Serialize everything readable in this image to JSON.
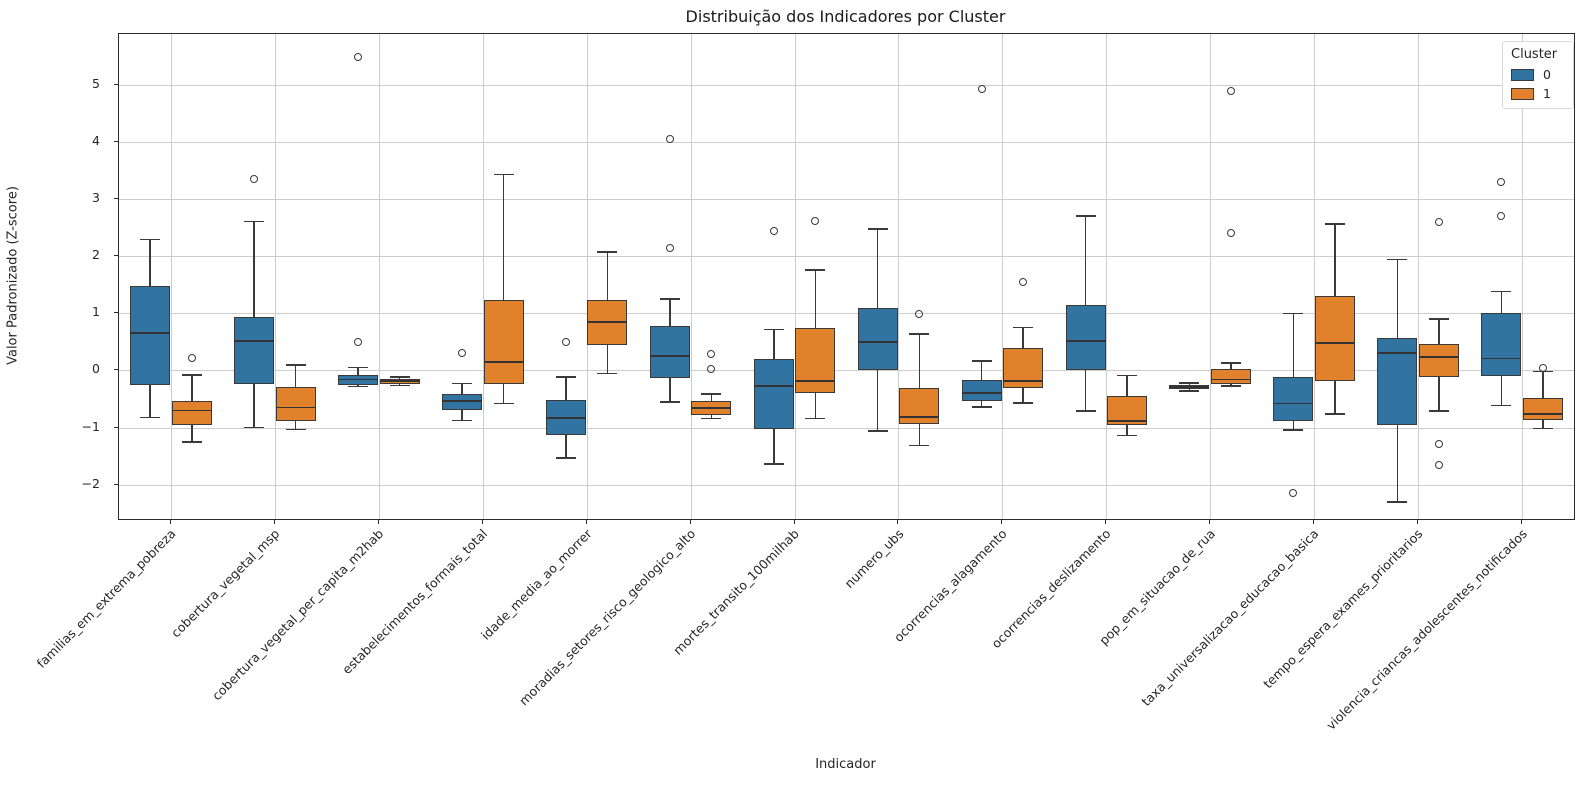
{
  "chart_data": {
    "type": "boxplot",
    "title": "Distribuição dos Indicadores por Cluster",
    "xlabel": "Indicador",
    "ylabel": "Valor Padronizado (Z-score)",
    "ylim": [
      -2.6,
      5.89
    ],
    "yticks": [
      -2,
      -1,
      0,
      1,
      2,
      3,
      4,
      5
    ],
    "grid": true,
    "legend": {
      "title": "Cluster",
      "position": "upper right",
      "entries": [
        {
          "label": "0",
          "color": "#3274A1"
        },
        {
          "label": "1",
          "color": "#E1812C"
        }
      ]
    },
    "categories": [
      "familias_em_extrema_pobreza",
      "cobertura_vegetal_msp",
      "cobertura_vegetal_per_capita_m2hab",
      "estabelecimentos_formais_total",
      "idade_media_ao_morrer",
      "moradias_setores_risco_geologico_alto",
      "mortes_transito_100milhab",
      "numero_ubs",
      "ocorrencias_alagamento",
      "ocorrencias_deslizamento",
      "pop_em_situacao_de_rua",
      "taxa_universalizacao_educacao_basica",
      "tempo_espera_exames_prioritarios",
      "violencia_criancas_adolescentes_notificados"
    ],
    "series": [
      {
        "name": "0",
        "color": "#3274A1",
        "boxes": [
          {
            "whislo": -0.82,
            "q1": -0.25,
            "med": 0.65,
            "q3": 1.48,
            "whishi": 2.29,
            "outliers": []
          },
          {
            "whislo": -1.0,
            "q1": -0.24,
            "med": 0.51,
            "q3": 0.94,
            "whishi": 2.61,
            "outliers": [
              3.36
            ]
          },
          {
            "whislo": -0.28,
            "q1": -0.25,
            "med": -0.16,
            "q3": -0.08,
            "whishi": 0.05,
            "outliers": [
              5.49,
              0.49
            ]
          },
          {
            "whislo": -0.88,
            "q1": -0.7,
            "med": -0.53,
            "q3": -0.41,
            "whishi": -0.23,
            "outliers": [
              0.31
            ]
          },
          {
            "whislo": -1.53,
            "q1": -1.13,
            "med": -0.83,
            "q3": -0.51,
            "whishi": -0.11,
            "outliers": [
              0.5
            ]
          },
          {
            "whislo": -0.55,
            "q1": -0.13,
            "med": 0.25,
            "q3": 0.77,
            "whishi": 1.25,
            "outliers": [
              4.05,
              2.14
            ]
          },
          {
            "whislo": -1.64,
            "q1": -1.03,
            "med": -0.27,
            "q3": 0.2,
            "whishi": 0.72,
            "outliers": [
              2.44
            ]
          },
          {
            "whislo": -1.06,
            "q1": 0.0,
            "med": 0.5,
            "q3": 1.1,
            "whishi": 2.48,
            "outliers": []
          },
          {
            "whislo": -0.64,
            "q1": -0.53,
            "med": -0.4,
            "q3": -0.16,
            "whishi": 0.17,
            "outliers": [
              4.93
            ]
          },
          {
            "whislo": -0.71,
            "q1": 0.0,
            "med": 0.51,
            "q3": 1.15,
            "whishi": 2.7,
            "outliers": []
          },
          {
            "whislo": -0.36,
            "q1": -0.33,
            "med": -0.29,
            "q3": -0.25,
            "whishi": -0.22,
            "outliers": []
          },
          {
            "whislo": -1.04,
            "q1": -0.89,
            "med": -0.58,
            "q3": -0.12,
            "whishi": 1.0,
            "outliers": [
              -2.15
            ]
          },
          {
            "whislo": -2.3,
            "q1": -0.95,
            "med": 0.31,
            "q3": 0.57,
            "whishi": 1.94,
            "outliers": []
          },
          {
            "whislo": -0.61,
            "q1": -0.1,
            "med": 0.21,
            "q3": 1.01,
            "whishi": 1.38,
            "outliers": [
              3.3,
              2.7
            ]
          }
        ]
      },
      {
        "name": "1",
        "color": "#E1812C",
        "boxes": [
          {
            "whislo": -1.25,
            "q1": -0.96,
            "med": -0.7,
            "q3": -0.54,
            "whishi": -0.08,
            "outliers": [
              0.21
            ]
          },
          {
            "whislo": -1.03,
            "q1": -0.88,
            "med": -0.65,
            "q3": -0.29,
            "whishi": 0.1,
            "outliers": []
          },
          {
            "whislo": -0.26,
            "q1": -0.23,
            "med": -0.19,
            "q3": -0.15,
            "whishi": -0.11,
            "outliers": []
          },
          {
            "whislo": -0.58,
            "q1": -0.23,
            "med": 0.15,
            "q3": 1.24,
            "whishi": 3.43,
            "outliers": []
          },
          {
            "whislo": -0.05,
            "q1": 0.44,
            "med": 0.85,
            "q3": 1.23,
            "whishi": 2.07,
            "outliers": []
          },
          {
            "whislo": -0.84,
            "q1": -0.78,
            "med": -0.66,
            "q3": -0.54,
            "whishi": -0.41,
            "outliers": [
              0.29,
              0.02
            ]
          },
          {
            "whislo": -0.84,
            "q1": -0.39,
            "med": -0.18,
            "q3": 0.74,
            "whishi": 1.76,
            "outliers": [
              2.62
            ]
          },
          {
            "whislo": -1.31,
            "q1": -0.93,
            "med": -0.82,
            "q3": -0.3,
            "whishi": 0.64,
            "outliers": [
              0.98
            ]
          },
          {
            "whislo": -0.57,
            "q1": -0.3,
            "med": -0.18,
            "q3": 0.39,
            "whishi": 0.75,
            "outliers": [
              1.55
            ]
          },
          {
            "whislo": -1.14,
            "q1": -0.96,
            "med": -0.89,
            "q3": -0.45,
            "whishi": -0.09,
            "outliers": []
          },
          {
            "whislo": -0.27,
            "q1": -0.23,
            "med": -0.16,
            "q3": 0.02,
            "whishi": 0.13,
            "outliers": [
              4.9,
              2.41
            ]
          },
          {
            "whislo": -0.76,
            "q1": -0.19,
            "med": 0.48,
            "q3": 1.31,
            "whishi": 2.56,
            "outliers": []
          },
          {
            "whislo": -0.71,
            "q1": -0.12,
            "med": 0.23,
            "q3": 0.46,
            "whishi": 0.9,
            "outliers": [
              2.6,
              -1.29,
              -1.65
            ]
          },
          {
            "whislo": -1.02,
            "q1": -0.86,
            "med": -0.76,
            "q3": -0.48,
            "whishi": -0.02,
            "outliers": [
              0.04
            ]
          }
        ]
      }
    ],
    "style": {
      "edge_color": "#3a3a3a",
      "grid_color": "#cdcdcd",
      "spine_color": "#2b2b2b",
      "background": "#ffffff"
    }
  }
}
